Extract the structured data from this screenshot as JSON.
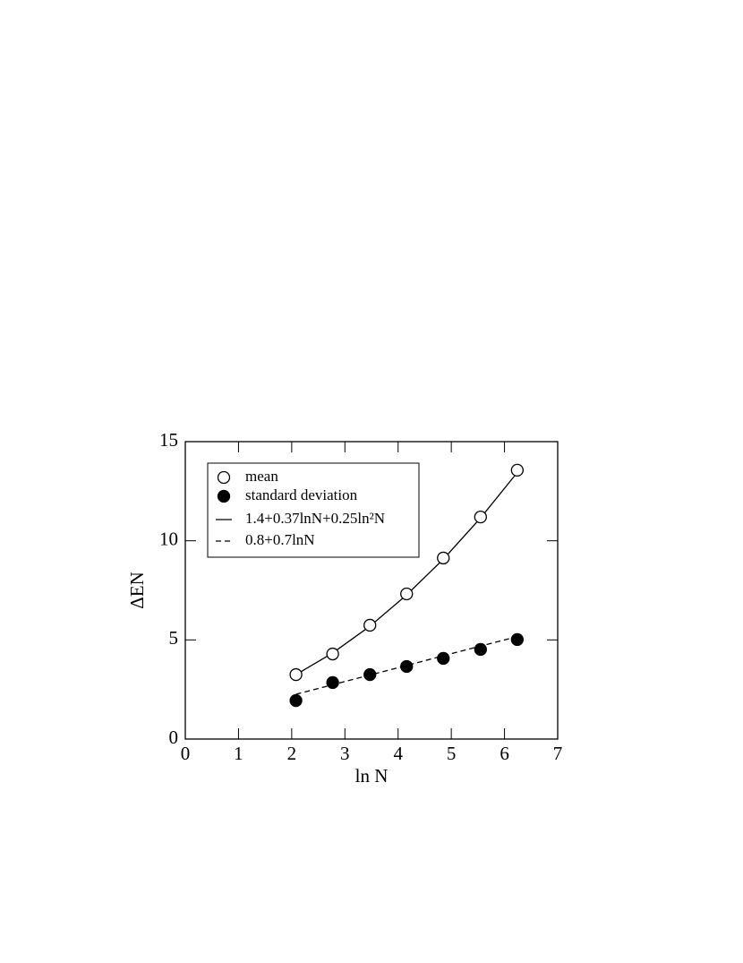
{
  "chart_data": {
    "type": "scatter",
    "xlabel": "ln N",
    "ylabel": "ΔEN",
    "x": [
      2.08,
      2.77,
      3.47,
      4.16,
      4.85,
      5.55,
      6.24
    ],
    "series": [
      {
        "name": "mean",
        "type": "scatter",
        "marker": "open",
        "color": "#000000",
        "values": [
          3.25,
          4.29,
          5.74,
          7.32,
          9.13,
          11.2,
          13.56
        ]
      },
      {
        "name": "standard deviation",
        "type": "scatter",
        "marker": "filled",
        "color": "#000000",
        "values": [
          1.94,
          2.85,
          3.25,
          3.66,
          4.07,
          4.52,
          5.02
        ]
      },
      {
        "name": "1.4+0.37lnN+0.25ln²N",
        "type": "line",
        "dash": false,
        "color": "#000000",
        "values": [
          3.25,
          4.34,
          5.69,
          7.27,
          9.07,
          11.15,
          13.44
        ]
      },
      {
        "name": "0.8+0.7lnN",
        "type": "line",
        "dash": true,
        "color": "#000000",
        "values": [
          2.26,
          2.74,
          3.23,
          3.71,
          4.2,
          4.69,
          5.17
        ]
      }
    ],
    "xlim": [
      0,
      7
    ],
    "ylim": [
      0,
      15
    ],
    "xticks": [
      0,
      1,
      2,
      3,
      4,
      5,
      6,
      7
    ],
    "yticks": [
      0,
      5,
      10,
      15
    ],
    "legend": "upper-left"
  }
}
